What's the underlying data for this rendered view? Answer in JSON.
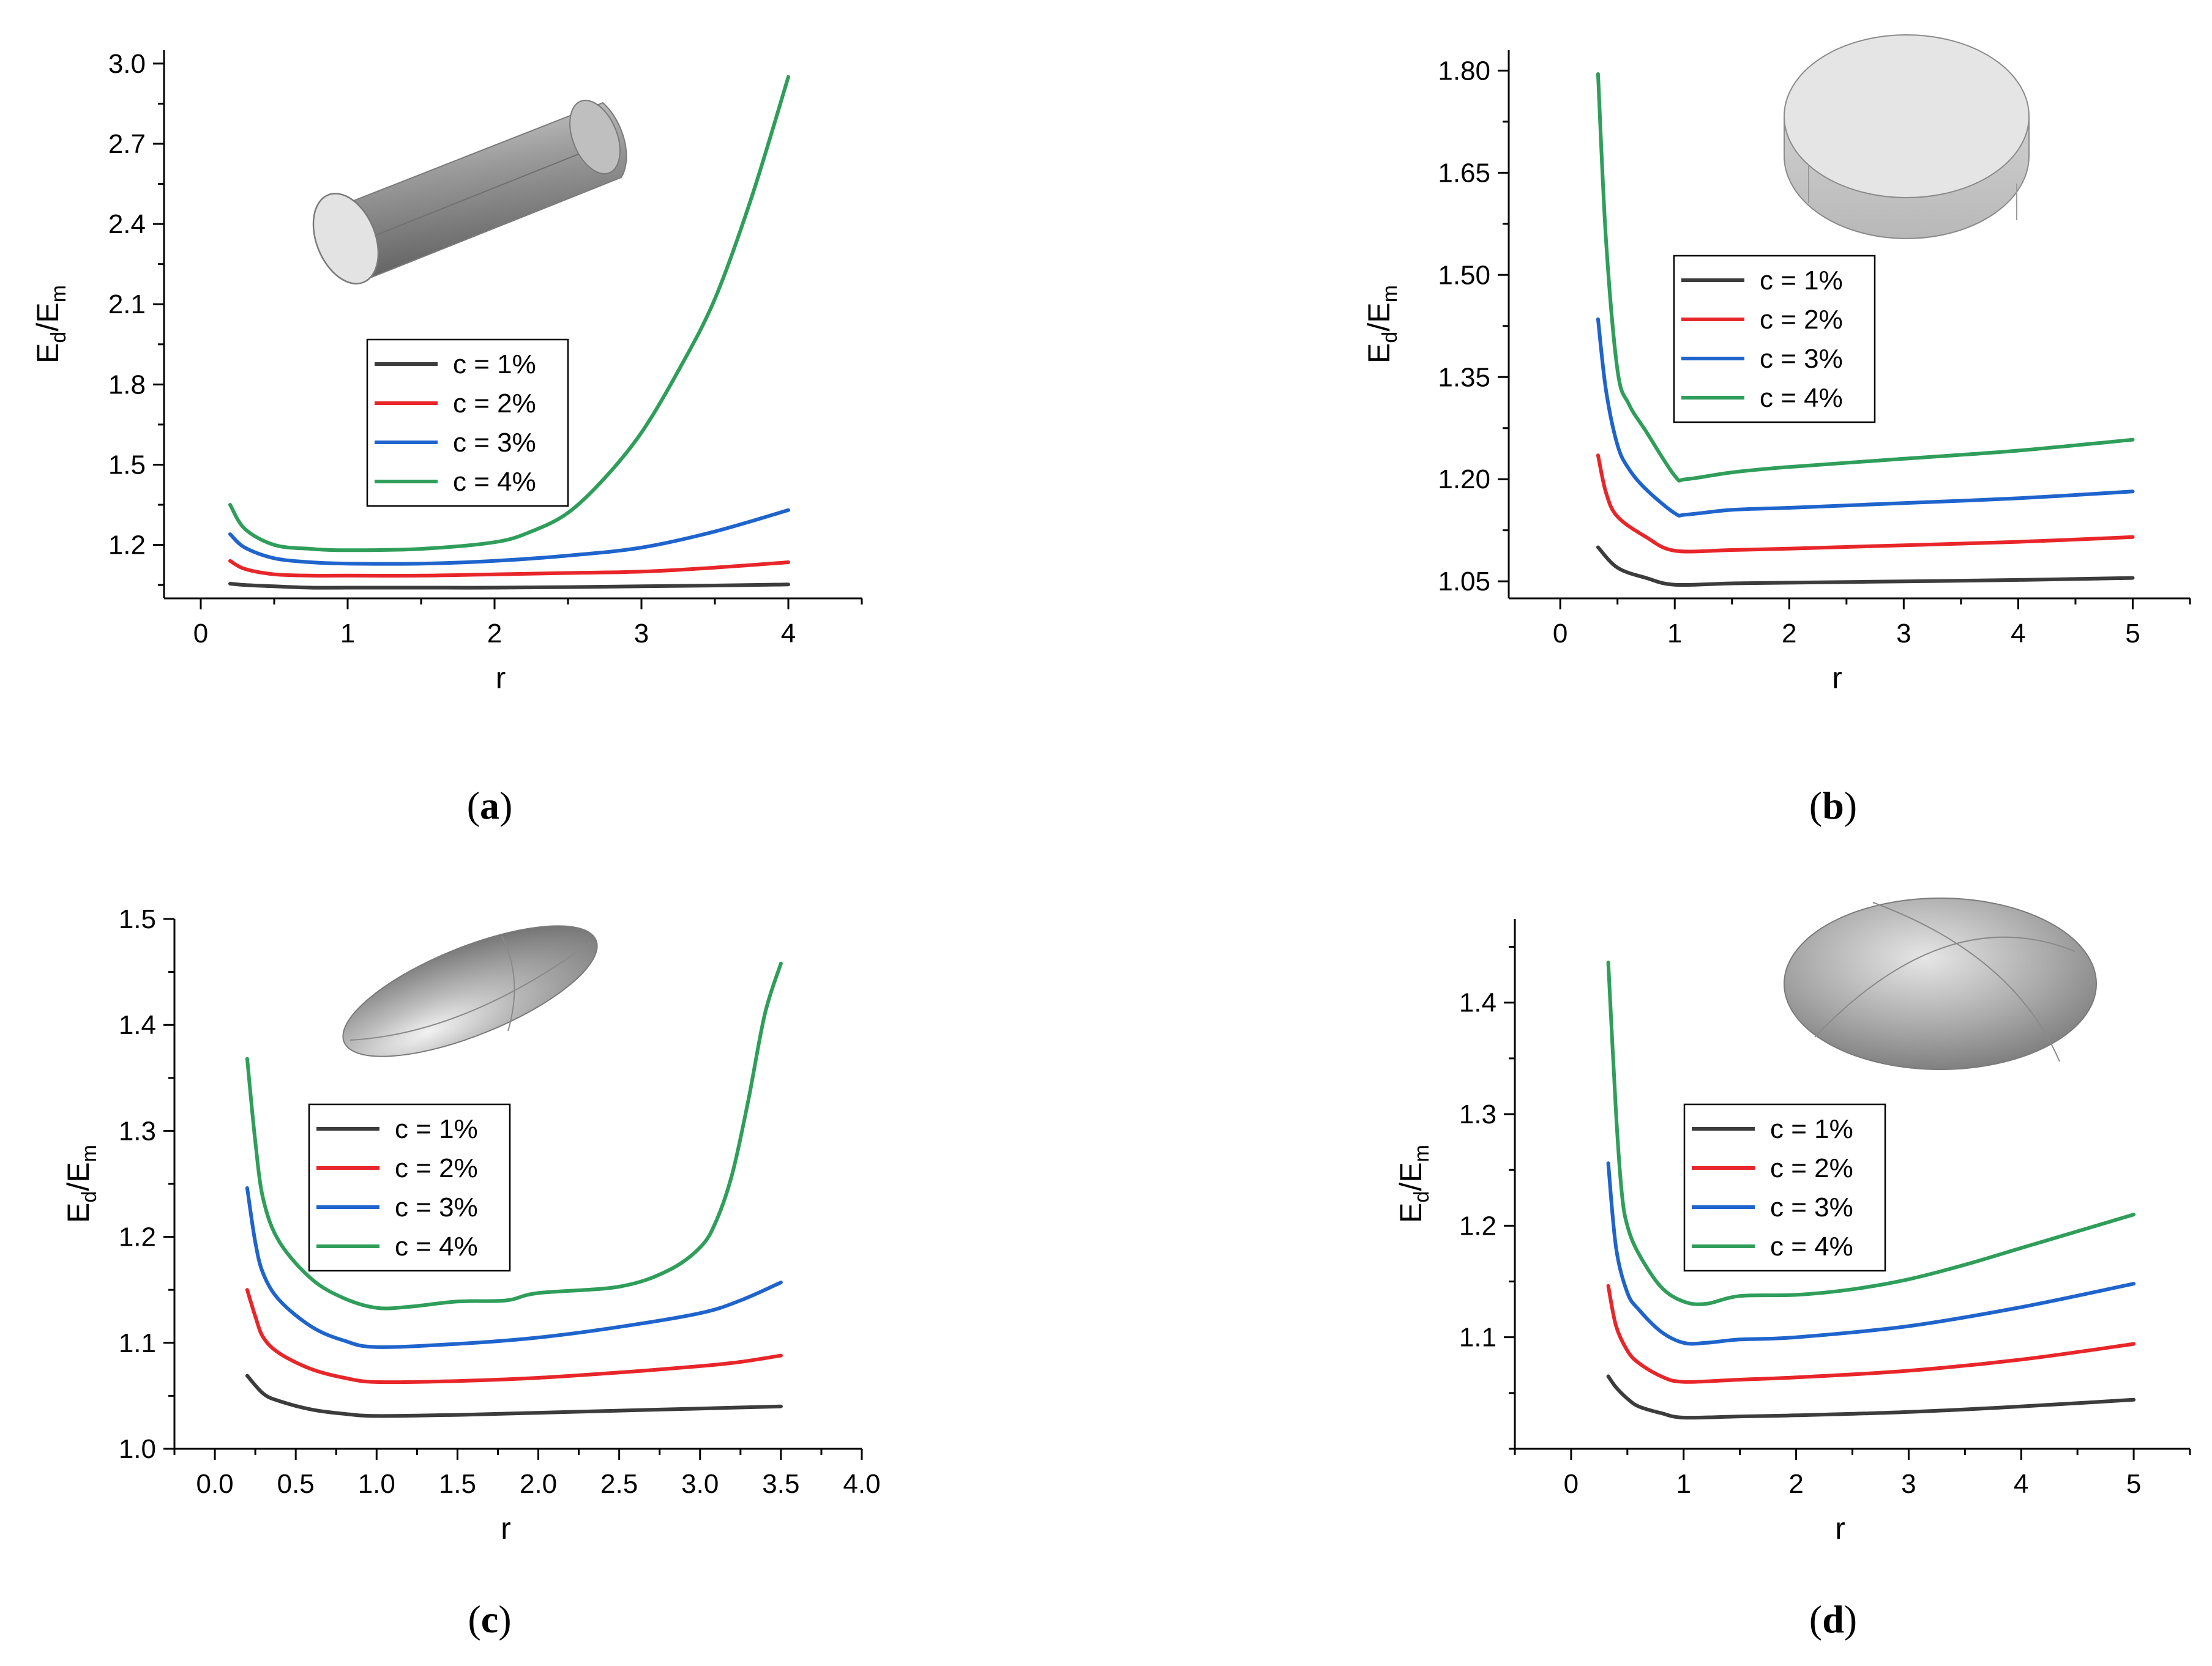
{
  "series_names": [
    "c = 1%",
    "c = 2%",
    "c = 3%",
    "c = 4%"
  ],
  "series_colors": [
    "#3c3c3c",
    "#e8262a",
    "#1f64cc",
    "#2f9e5a"
  ],
  "panels": [
    {
      "label_open": "(",
      "label_letter": "a",
      "label_close": ")",
      "xlabel": "r",
      "ylabel_main": "E",
      "ylabel_sub1": "d",
      "ylabel_slash": "/",
      "ylabel_main2": "E",
      "ylabel_sub2": "m",
      "illustration": "cylinder-illustration"
    },
    {
      "label_open": "(",
      "label_letter": "b",
      "label_close": ")",
      "xlabel": "r",
      "ylabel_main": "E",
      "ylabel_sub1": "d",
      "ylabel_slash": "/",
      "ylabel_main2": "E",
      "ylabel_sub2": "m",
      "illustration": "disk-illustration"
    },
    {
      "label_open": "(",
      "label_letter": "c",
      "label_close": ")",
      "xlabel": "r",
      "ylabel_main": "E",
      "ylabel_sub1": "d",
      "ylabel_slash": "/",
      "ylabel_main2": "E",
      "ylabel_sub2": "m",
      "illustration": "prolate-ellipsoid-illustration"
    },
    {
      "label_open": "(",
      "label_letter": "d",
      "label_close": ")",
      "xlabel": "r",
      "ylabel_main": "E",
      "ylabel_sub1": "d",
      "ylabel_slash": "/",
      "ylabel_main2": "E",
      "ylabel_sub2": "m",
      "illustration": "oblate-ellipsoid-illustration"
    }
  ],
  "chart_data": [
    {
      "type": "line",
      "title": "(a)",
      "xlabel": "r",
      "ylabel": "Ed/Em",
      "xlim": [
        -0.25,
        4.5
      ],
      "ylim": [
        1.0,
        3.05
      ],
      "xticks": [
        0,
        1,
        2,
        3,
        4
      ],
      "xtick_labels": [
        "0",
        "1",
        "2",
        "3",
        "4"
      ],
      "yticks": [
        1.2,
        1.5,
        1.8,
        2.1,
        2.4,
        2.7,
        3.0
      ],
      "ytick_labels": [
        "1.2",
        "1.5",
        "1.8",
        "2.1",
        "2.4",
        "2.7",
        "3.0"
      ],
      "legend": [
        "c = 1%",
        "c = 2%",
        "c = 3%",
        "c = 4%"
      ],
      "legend_position": "center",
      "series": [
        {
          "name": "c = 1%",
          "x": [
            0.2,
            0.3,
            0.5,
            0.75,
            1.0,
            1.5,
            2.0,
            2.5,
            3.0,
            3.5,
            4.0
          ],
          "y": [
            1.055,
            1.05,
            1.045,
            1.04,
            1.04,
            1.04,
            1.04,
            1.042,
            1.045,
            1.048,
            1.052
          ]
        },
        {
          "name": "c = 2%",
          "x": [
            0.2,
            0.3,
            0.5,
            0.75,
            1.0,
            1.5,
            2.0,
            2.5,
            3.0,
            3.5,
            4.0
          ],
          "y": [
            1.14,
            1.11,
            1.09,
            1.085,
            1.085,
            1.085,
            1.09,
            1.095,
            1.1,
            1.115,
            1.135
          ]
        },
        {
          "name": "c = 3%",
          "x": [
            0.2,
            0.3,
            0.5,
            0.75,
            1.0,
            1.5,
            2.0,
            2.5,
            3.0,
            3.5,
            4.0
          ],
          "y": [
            1.24,
            1.19,
            1.15,
            1.135,
            1.13,
            1.13,
            1.14,
            1.16,
            1.19,
            1.25,
            1.33
          ]
        },
        {
          "name": "c = 4%",
          "x": [
            0.2,
            0.3,
            0.5,
            0.75,
            1.0,
            1.5,
            2.0,
            2.25,
            2.5,
            2.75,
            3.0,
            3.25,
            3.5,
            3.75,
            4.0
          ],
          "y": [
            1.35,
            1.26,
            1.2,
            1.185,
            1.18,
            1.185,
            1.21,
            1.25,
            1.32,
            1.45,
            1.62,
            1.85,
            2.12,
            2.5,
            2.95
          ]
        }
      ]
    },
    {
      "type": "line",
      "title": "(b)",
      "xlabel": "r",
      "ylabel": "Ed/Em",
      "xlim": [
        -0.45,
        5.5
      ],
      "ylim": [
        1.025,
        1.83
      ],
      "xticks": [
        0,
        1,
        2,
        3,
        4,
        5
      ],
      "xtick_labels": [
        "0",
        "1",
        "2",
        "3",
        "4",
        "5"
      ],
      "yticks": [
        1.05,
        1.2,
        1.35,
        1.5,
        1.65,
        1.8
      ],
      "ytick_labels": [
        "1.05",
        "1.20",
        "1.35",
        "1.50",
        "1.65",
        "1.80"
      ],
      "legend": [
        "c = 1%",
        "c = 2%",
        "c = 3%",
        "c = 4%"
      ],
      "legend_position": "top-center",
      "series": [
        {
          "name": "c = 1%",
          "x": [
            0.33,
            0.5,
            0.75,
            1.0,
            1.5,
            2.0,
            3.0,
            4.0,
            5.0
          ],
          "y": [
            1.1,
            1.07,
            1.055,
            1.045,
            1.047,
            1.048,
            1.05,
            1.052,
            1.055
          ]
        },
        {
          "name": "c = 2%",
          "x": [
            0.33,
            0.4,
            0.5,
            0.75,
            1.0,
            1.5,
            2.0,
            3.0,
            4.0,
            5.0
          ],
          "y": [
            1.235,
            1.18,
            1.145,
            1.115,
            1.095,
            1.096,
            1.098,
            1.103,
            1.108,
            1.115
          ]
        },
        {
          "name": "c = 3%",
          "x": [
            0.33,
            0.4,
            0.5,
            0.6,
            0.75,
            1.0,
            1.1,
            1.5,
            2.0,
            3.0,
            4.0,
            5.0
          ],
          "y": [
            1.435,
            1.33,
            1.25,
            1.215,
            1.185,
            1.15,
            1.148,
            1.155,
            1.158,
            1.165,
            1.172,
            1.182
          ]
        },
        {
          "name": "c = 4%",
          "x": [
            0.33,
            0.4,
            0.5,
            0.6,
            0.75,
            1.0,
            1.1,
            1.5,
            2.0,
            3.0,
            4.0,
            5.0
          ],
          "y": [
            1.795,
            1.55,
            1.36,
            1.31,
            1.27,
            1.205,
            1.2,
            1.21,
            1.218,
            1.23,
            1.242,
            1.258
          ]
        }
      ]
    },
    {
      "type": "line",
      "title": "(c)",
      "xlabel": "r",
      "ylabel": "Ed/Em",
      "xlim": [
        -0.25,
        4.0
      ],
      "ylim": [
        1.0,
        1.5
      ],
      "xticks": [
        0.0,
        0.5,
        1.0,
        1.5,
        2.0,
        2.5,
        3.0,
        3.5,
        4.0
      ],
      "xtick_labels": [
        "0.0",
        "0.5",
        "1.0",
        "1.5",
        "2.0",
        "2.5",
        "3.0",
        "3.5",
        "4.0"
      ],
      "yticks": [
        1.0,
        1.1,
        1.2,
        1.3,
        1.4,
        1.5
      ],
      "ytick_labels": [
        "1.0",
        "1.1",
        "1.2",
        "1.3",
        "1.4",
        "1.5"
      ],
      "legend": [
        "c = 1%",
        "c = 2%",
        "c = 3%",
        "c = 4%"
      ],
      "legend_position": "center-left",
      "series": [
        {
          "name": "c = 1%",
          "x": [
            0.2,
            0.3,
            0.4,
            0.6,
            0.8,
            1.0,
            1.5,
            2.0,
            2.5,
            3.0,
            3.5
          ],
          "y": [
            1.069,
            1.052,
            1.045,
            1.037,
            1.033,
            1.031,
            1.032,
            1.034,
            1.036,
            1.038,
            1.04
          ]
        },
        {
          "name": "c = 2%",
          "x": [
            0.2,
            0.25,
            0.3,
            0.4,
            0.6,
            0.8,
            1.0,
            1.5,
            2.0,
            2.5,
            3.0,
            3.25,
            3.5
          ],
          "y": [
            1.15,
            1.125,
            1.105,
            1.09,
            1.075,
            1.067,
            1.063,
            1.064,
            1.067,
            1.072,
            1.078,
            1.082,
            1.088
          ]
        },
        {
          "name": "c = 3%",
          "x": [
            0.2,
            0.25,
            0.3,
            0.4,
            0.6,
            0.8,
            1.0,
            1.5,
            2.0,
            2.5,
            3.0,
            3.25,
            3.5
          ],
          "y": [
            1.246,
            1.195,
            1.165,
            1.14,
            1.115,
            1.102,
            1.096,
            1.099,
            1.105,
            1.115,
            1.128,
            1.14,
            1.157
          ]
        },
        {
          "name": "c = 4%",
          "x": [
            0.2,
            0.25,
            0.3,
            0.4,
            0.6,
            0.8,
            1.0,
            1.2,
            1.5,
            1.8,
            2.0,
            2.5,
            2.8,
            3.0,
            3.1,
            3.2,
            3.3,
            3.4,
            3.5
          ],
          "y": [
            1.368,
            1.29,
            1.235,
            1.195,
            1.16,
            1.142,
            1.133,
            1.134,
            1.139,
            1.14,
            1.147,
            1.153,
            1.168,
            1.19,
            1.215,
            1.26,
            1.33,
            1.41,
            1.458
          ]
        }
      ]
    },
    {
      "type": "line",
      "title": "(d)",
      "xlabel": "r",
      "ylabel": "Ed/Em",
      "xlim": [
        -0.5,
        5.5
      ],
      "ylim": [
        1.0,
        1.475
      ],
      "xticks": [
        0,
        1,
        2,
        3,
        4,
        5
      ],
      "xtick_labels": [
        "0",
        "1",
        "2",
        "3",
        "4",
        "5"
      ],
      "yticks": [
        1.1,
        1.2,
        1.3,
        1.4
      ],
      "ytick_labels": [
        "1.1",
        "1.2",
        "1.3",
        "1.4"
      ],
      "legend": [
        "c = 1%",
        "c = 2%",
        "c = 3%",
        "c = 4%"
      ],
      "legend_position": "center",
      "series": [
        {
          "name": "c = 1%",
          "x": [
            0.33,
            0.4,
            0.5,
            0.6,
            0.8,
            1.0,
            1.5,
            2.0,
            3.0,
            4.0,
            5.0
          ],
          "y": [
            1.065,
            1.055,
            1.045,
            1.038,
            1.032,
            1.028,
            1.029,
            1.03,
            1.033,
            1.038,
            1.044
          ]
        },
        {
          "name": "c = 2%",
          "x": [
            0.33,
            0.4,
            0.5,
            0.6,
            0.8,
            1.0,
            1.5,
            2.0,
            3.0,
            4.0,
            5.0
          ],
          "y": [
            1.146,
            1.11,
            1.088,
            1.077,
            1.065,
            1.06,
            1.062,
            1.064,
            1.07,
            1.08,
            1.094
          ]
        },
        {
          "name": "c = 3%",
          "x": [
            0.33,
            0.4,
            0.5,
            0.6,
            0.8,
            1.0,
            1.2,
            1.5,
            2.0,
            3.0,
            4.0,
            5.0
          ],
          "y": [
            1.256,
            1.18,
            1.14,
            1.125,
            1.105,
            1.095,
            1.095,
            1.098,
            1.1,
            1.11,
            1.127,
            1.148
          ]
        },
        {
          "name": "c = 4%",
          "x": [
            0.33,
            0.4,
            0.45,
            0.5,
            0.6,
            0.8,
            1.0,
            1.2,
            1.5,
            2.0,
            2.5,
            3.0,
            3.5,
            4.0,
            4.5,
            5.0
          ],
          "y": [
            1.436,
            1.3,
            1.23,
            1.2,
            1.175,
            1.145,
            1.132,
            1.13,
            1.137,
            1.138,
            1.143,
            1.152,
            1.165,
            1.18,
            1.195,
            1.21
          ]
        }
      ]
    }
  ]
}
